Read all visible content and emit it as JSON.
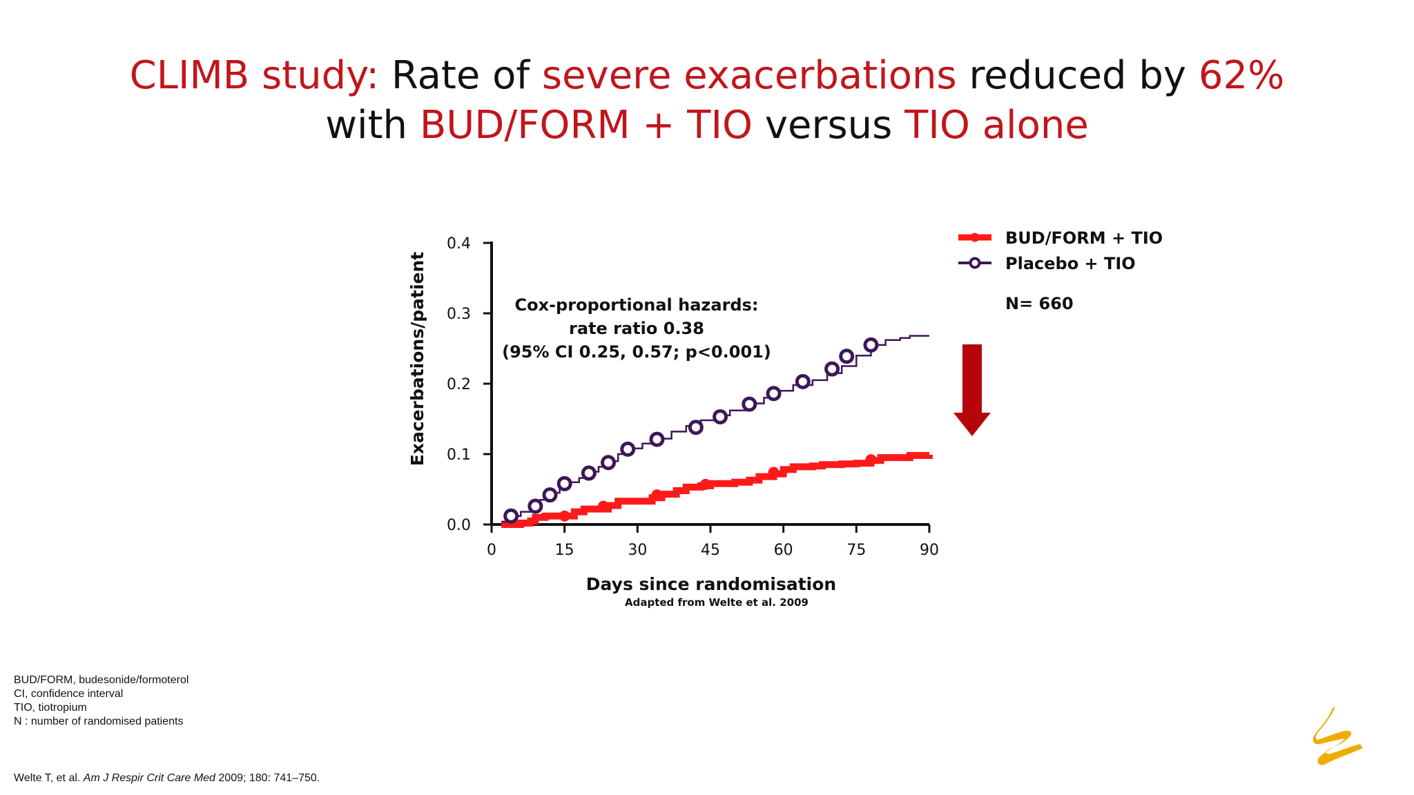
{
  "title": {
    "line1": [
      {
        "text": "CLIMB study:",
        "red": true
      },
      {
        "text": " Rate of ",
        "red": false
      },
      {
        "text": "severe exacerbations",
        "red": true
      },
      {
        "text": " reduced by ",
        "red": false
      },
      {
        "text": "62%",
        "red": true
      }
    ],
    "line2": [
      {
        "text": "with ",
        "red": false
      },
      {
        "text": "BUD/FORM + TIO",
        "red": true
      },
      {
        "text": " versus ",
        "red": false
      },
      {
        "text": "TIO alone",
        "red": true
      }
    ]
  },
  "chart_data": {
    "type": "line",
    "title": "",
    "xlabel": "Days since randomisation",
    "ylabel": "Exacerbations/patient",
    "xlim": [
      0,
      90
    ],
    "ylim": [
      0,
      0.4
    ],
    "x_ticks": [
      "0",
      "15",
      "30",
      "45",
      "60",
      "75",
      "90"
    ],
    "y_ticks": [
      "0.0",
      "0.1",
      "0.2",
      "0.3",
      "0.4"
    ],
    "grid": false,
    "step": true,
    "source": "Adapted from Welte et al. 2009",
    "annotation": [
      "Cox-proportional hazards:",
      "rate ratio 0.38",
      "(95% CI 0.25, 0.57; p<0.001)"
    ],
    "legend_position": "top-right",
    "n_label": "N= 660",
    "series": [
      {
        "name": "BUD/FORM + TIO",
        "color": "#ff1a1a",
        "marker": "filled-circle",
        "points": [
          [
            2,
            0
          ],
          [
            4,
            0
          ],
          [
            6,
            0.002
          ],
          [
            8,
            0.005
          ],
          [
            9,
            0.01
          ],
          [
            11,
            0.012
          ],
          [
            13,
            0.012
          ],
          [
            15,
            0.012
          ],
          [
            17,
            0.018
          ],
          [
            19,
            0.022
          ],
          [
            22,
            0.022
          ],
          [
            24,
            0.027
          ],
          [
            26,
            0.033
          ],
          [
            30,
            0.033
          ],
          [
            33,
            0.038
          ],
          [
            35,
            0.043
          ],
          [
            38,
            0.048
          ],
          [
            40,
            0.053
          ],
          [
            43,
            0.055
          ],
          [
            45,
            0.058
          ],
          [
            47,
            0.058
          ],
          [
            50,
            0.06
          ],
          [
            53,
            0.063
          ],
          [
            55,
            0.068
          ],
          [
            58,
            0.072
          ],
          [
            60,
            0.078
          ],
          [
            62,
            0.082
          ],
          [
            66,
            0.083
          ],
          [
            68,
            0.085
          ],
          [
            72,
            0.086
          ],
          [
            75,
            0.087
          ],
          [
            78,
            0.091
          ],
          [
            80,
            0.095
          ],
          [
            84,
            0.095
          ],
          [
            86,
            0.098
          ],
          [
            90,
            0.099
          ]
        ],
        "markers": [
          [
            15,
            0.012
          ],
          [
            23,
            0.026
          ],
          [
            34,
            0.042
          ],
          [
            44,
            0.057
          ],
          [
            58,
            0.074
          ],
          [
            78,
            0.092
          ]
        ]
      },
      {
        "name": "Placebo + TIO",
        "color": "#3d1758",
        "marker": "open-circle",
        "points": [
          [
            2,
            0.004
          ],
          [
            4,
            0.012
          ],
          [
            6,
            0.018
          ],
          [
            8,
            0.028
          ],
          [
            10,
            0.035
          ],
          [
            12,
            0.045
          ],
          [
            14,
            0.055
          ],
          [
            16,
            0.06
          ],
          [
            18,
            0.066
          ],
          [
            20,
            0.075
          ],
          [
            22,
            0.082
          ],
          [
            24,
            0.09
          ],
          [
            26,
            0.1
          ],
          [
            28,
            0.108
          ],
          [
            31,
            0.115
          ],
          [
            34,
            0.122
          ],
          [
            37,
            0.132
          ],
          [
            40,
            0.14
          ],
          [
            43,
            0.148
          ],
          [
            46,
            0.155
          ],
          [
            49,
            0.162
          ],
          [
            53,
            0.172
          ],
          [
            56,
            0.18
          ],
          [
            59,
            0.19
          ],
          [
            62,
            0.198
          ],
          [
            66,
            0.205
          ],
          [
            69,
            0.215
          ],
          [
            72,
            0.225
          ],
          [
            75,
            0.24
          ],
          [
            78,
            0.255
          ],
          [
            81,
            0.262
          ],
          [
            84,
            0.265
          ],
          [
            86,
            0.268
          ],
          [
            90,
            0.268
          ]
        ],
        "markers": [
          [
            4,
            0.012
          ],
          [
            9,
            0.026
          ],
          [
            12,
            0.042
          ],
          [
            15,
            0.058
          ],
          [
            20,
            0.073
          ],
          [
            24,
            0.088
          ],
          [
            28,
            0.107
          ],
          [
            34,
            0.121
          ],
          [
            42,
            0.138
          ],
          [
            47,
            0.153
          ],
          [
            53,
            0.171
          ],
          [
            58,
            0.186
          ],
          [
            64,
            0.203
          ],
          [
            70,
            0.221
          ],
          [
            73,
            0.239
          ],
          [
            78,
            0.255
          ]
        ]
      }
    ]
  },
  "arrow_color": "#b5050b",
  "footnotes": [
    "BUD/FORM, budesonide/formoterol",
    "CI, confidence interval",
    "TIO, tiotropium",
    "N : number of randomised patients"
  ],
  "reference": {
    "authors": "Welte T, et al. ",
    "journal": "Am J Respir Crit Care Med",
    "details": " 2009; 180: 741–750."
  },
  "logo_color": "#f0ab00"
}
